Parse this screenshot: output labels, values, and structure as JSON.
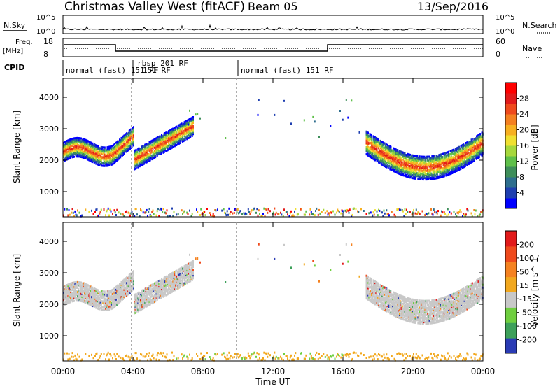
{
  "header": {
    "title": "Christmas Valley West (fitACF)",
    "beam": "Beam 05",
    "date": "13/Sep/2016"
  },
  "noise_panel": {
    "left_label": "N.Sky",
    "right_label": "N.Search",
    "left_ticks": [
      "10^5",
      "10^0"
    ],
    "right_ticks": [
      "10^5",
      "10^0"
    ]
  },
  "freq_panel": {
    "left_label_1": "Freq.",
    "left_label_2": "[MHz]",
    "right_label": "Nave",
    "left_ticks": [
      "18",
      "8"
    ],
    "right_ticks": [
      "60",
      "0"
    ]
  },
  "cpid": {
    "label": "CPID",
    "segments": [
      "normal (fast) 151 RF",
      "rbsp 201 RF",
      "151 RF",
      "normal (fast) 151 RF"
    ]
  },
  "chart_data": {
    "type": "heatmap",
    "x": {
      "label": "Time UT",
      "range_hours": [
        0,
        24
      ],
      "ticks": [
        "00:00",
        "04:00",
        "08:00",
        "12:00",
        "16:00",
        "20:00",
        "00:00"
      ]
    },
    "panels": [
      {
        "name": "Power",
        "ylabel": "Slant Range [km]",
        "ylim_km": [
          200,
          4600
        ],
        "yticks": [
          "1000",
          "2000",
          "3000",
          "4000"
        ],
        "colorbar_label": "Power [dB]",
        "colorbar_ticks": [
          "28",
          "24",
          "20",
          "16",
          "12",
          "8",
          "4"
        ],
        "colorbar_range": [
          0,
          32
        ],
        "colors": [
          "#0000ff",
          "#1f3fb0",
          "#2e6e8e",
          "#3e8e5a",
          "#5fc04a",
          "#a6d83c",
          "#f0e030",
          "#f7b020",
          "#f48020",
          "#ef4a1c",
          "#e21a1a",
          "#ff0000"
        ]
      },
      {
        "name": "Velocity",
        "ylabel": "Slant Range [km]",
        "ylim_km": [
          200,
          4600
        ],
        "yticks": [
          "1000",
          "2000",
          "3000",
          "4000"
        ],
        "colorbar_label": "Velocity [m s^-1]",
        "colorbar_ticks": [
          "200",
          "100",
          "50",
          "15",
          "-15",
          "-50",
          "-100",
          "-200"
        ],
        "colors": [
          "#2a3bb5",
          "#3da05a",
          "#6fcf3f",
          "#c8c8c8",
          "#f2a81e",
          "#f58220",
          "#ef4a1c",
          "#e21a1a"
        ]
      }
    ]
  }
}
